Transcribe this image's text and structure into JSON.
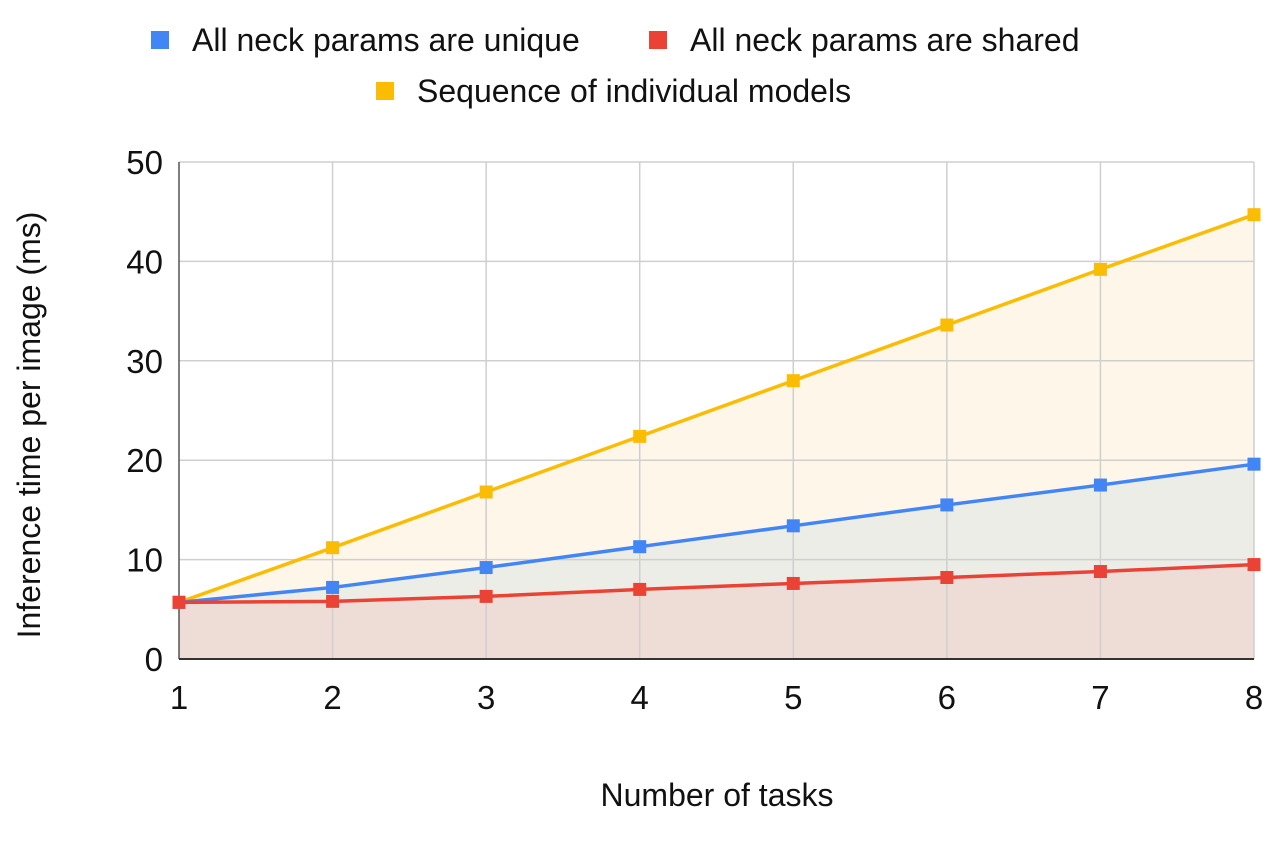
{
  "chart_data": {
    "type": "area",
    "title": "",
    "xlabel": "Number of tasks",
    "ylabel": "Inference time per image (ms)",
    "x": [
      1,
      2,
      3,
      4,
      5,
      6,
      7,
      8
    ],
    "xlim": [
      1,
      8
    ],
    "ylim": [
      0,
      50
    ],
    "yticks": [
      0,
      10,
      20,
      30,
      40,
      50
    ],
    "grid": true,
    "legend_position": "top",
    "series": [
      {
        "name": "All neck params are unique",
        "color": "#4285F4",
        "values": [
          5.7,
          7.2,
          9.2,
          11.3,
          13.4,
          15.5,
          17.5,
          19.6
        ]
      },
      {
        "name": "All neck params are shared",
        "color": "#EA4335",
        "values": [
          5.7,
          5.8,
          6.3,
          7.0,
          7.6,
          8.2,
          8.8,
          9.5
        ]
      },
      {
        "name": "Sequence of individual models",
        "color": "#FBBC04",
        "values": [
          5.7,
          11.2,
          16.8,
          22.4,
          28.0,
          33.6,
          39.2,
          44.7
        ]
      }
    ],
    "fills": {
      "bottom_band_color": "#EEDCD6",
      "middle_band_color": "#ECEDE7",
      "top_band_color": "#FDF6E9"
    }
  }
}
